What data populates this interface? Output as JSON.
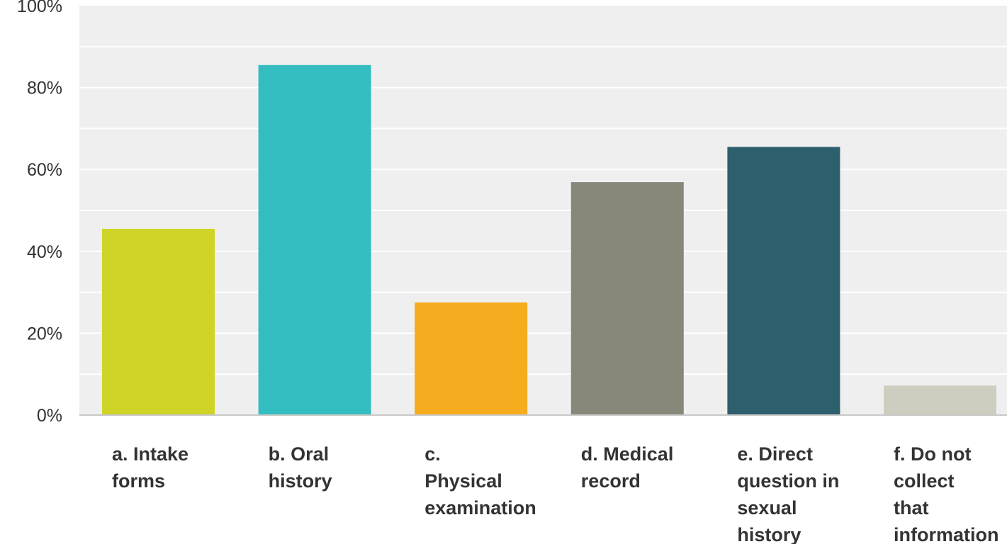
{
  "chart_data": {
    "type": "bar",
    "title": "",
    "xlabel": "",
    "ylabel": "",
    "categories": [
      [
        "a. Intake",
        "forms"
      ],
      [
        "b. Oral",
        "history"
      ],
      [
        "c.",
        "Physical",
        "examination"
      ],
      [
        "d. Medical",
        "record"
      ],
      [
        "e. Direct",
        "question in",
        "sexual",
        "history"
      ],
      [
        "f. Do not",
        "collect",
        "that",
        "information"
      ]
    ],
    "values": [
      45.5,
      85.5,
      27.5,
      56.9,
      65.5,
      7.2
    ],
    "ylim": [
      0,
      100
    ],
    "y_tick_values": [
      0,
      20,
      40,
      60,
      80,
      100
    ],
    "y_tick_labels": [
      "0%",
      "20%",
      "40%",
      "60%",
      "80%",
      "100%"
    ],
    "grid": true,
    "legend": "none",
    "colors": {
      "bars": [
        "#cfd427",
        "#34bdc0",
        "#f5ac1f",
        "#87877a",
        "#2d5f6d",
        "#cecdbf"
      ],
      "plot_background": "#efefef",
      "gridline": "#ffffff",
      "axis_text": "#333333"
    }
  }
}
